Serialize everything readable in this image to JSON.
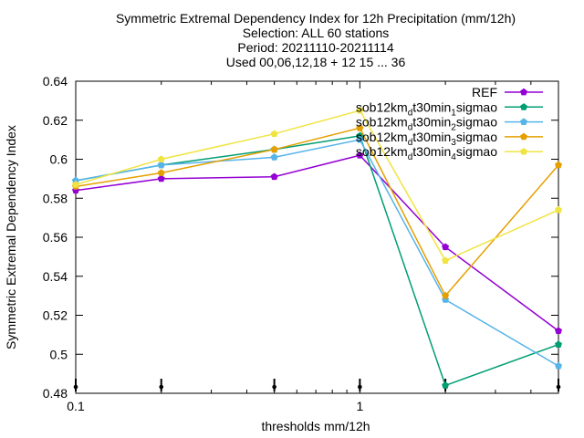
{
  "chart_data": {
    "type": "line",
    "title_lines": [
      "Symmetric Extremal Dependency Index  for 12h Precipitation (mm/12h)",
      "Selection: ALL     60 stations",
      "Period: 20211110-20211114",
      "Used 00,06,12,18 + 12 15 ... 36"
    ],
    "xlabel": "thresholds mm/12h",
    "ylabel": "Symmetric Extremal Dependency Index",
    "x_scale": "log",
    "xlim": [
      0.1,
      5
    ],
    "ylim": [
      0.48,
      0.64
    ],
    "x_tick_labels": [
      {
        "value": 0.1,
        "label": "0.1"
      },
      {
        "value": 1,
        "label": "1"
      }
    ],
    "y_ticks": [
      0.48,
      0.5,
      0.52,
      0.54,
      0.56,
      0.58,
      0.6,
      0.62,
      0.64
    ],
    "y_tick_labels": [
      "0.48",
      "0.5",
      "0.52",
      "0.54",
      "0.56",
      "0.58",
      "0.6",
      "0.62",
      "0.64"
    ],
    "x": [
      0.1,
      0.2,
      0.5,
      1,
      2,
      5
    ],
    "series": [
      {
        "name": "REF",
        "color": "#9400d3",
        "values": [
          0.584,
          0.59,
          0.591,
          0.602,
          0.555,
          0.512
        ]
      },
      {
        "name_base": "sob12km",
        "name_sub1": "d",
        "name_mid": "t30min",
        "name_sub2": "1",
        "name_end": "sigmao",
        "color": "#009e73",
        "values": [
          0.589,
          0.597,
          0.605,
          0.612,
          0.484,
          0.505
        ]
      },
      {
        "name_base": "sob12km",
        "name_sub1": "d",
        "name_mid": "t30min",
        "name_sub2": "2",
        "name_end": "sigmao",
        "color": "#56b4e9",
        "values": [
          0.589,
          0.597,
          0.601,
          0.61,
          0.528,
          0.494
        ]
      },
      {
        "name_base": "sob12km",
        "name_sub1": "d",
        "name_mid": "t30min",
        "name_sub2": "3",
        "name_end": "sigmao",
        "color": "#e69f00",
        "values": [
          0.586,
          0.593,
          0.605,
          0.616,
          0.53,
          0.597
        ]
      },
      {
        "name_base": "sob12km",
        "name_sub1": "d",
        "name_mid": "t30min",
        "name_sub2": "4",
        "name_end": "sigmao",
        "color": "#f0e442",
        "values": [
          0.587,
          0.6,
          0.613,
          0.625,
          0.548,
          0.574
        ]
      }
    ],
    "grid": false,
    "legend_position": "top-right"
  }
}
